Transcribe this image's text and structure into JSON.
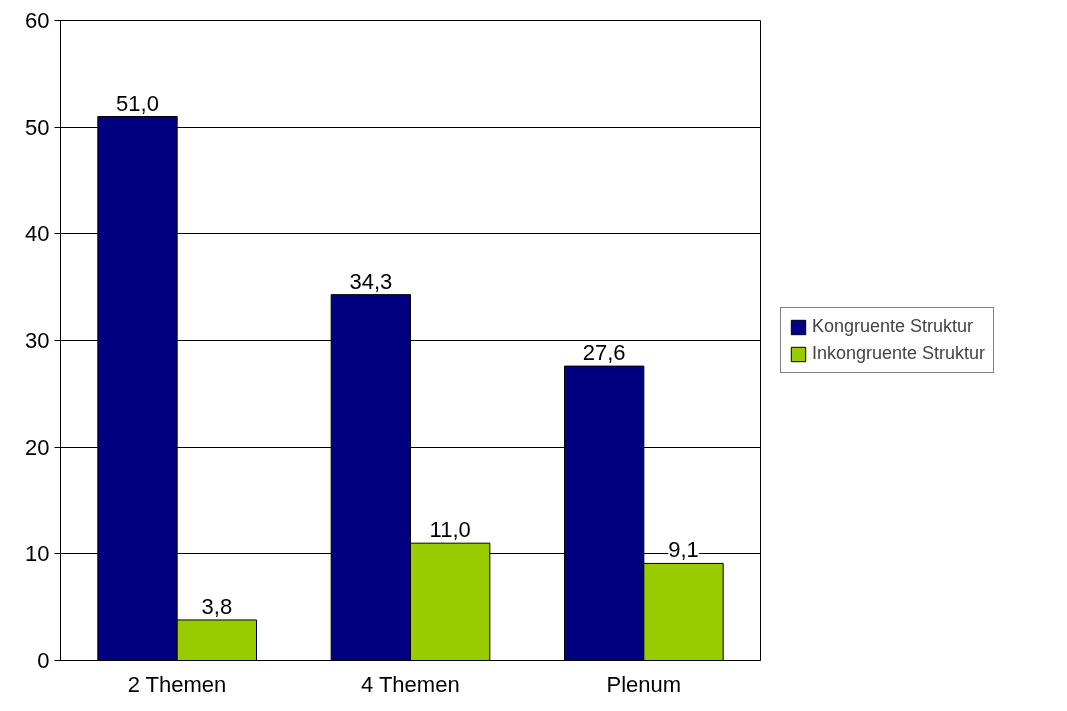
{
  "chart_data": {
    "type": "bar",
    "categories": [
      "2 Themen",
      "4 Themen",
      "Plenum"
    ],
    "series": [
      {
        "name": "Kongruente Struktur",
        "color": "#000080",
        "values": [
          51.0,
          34.3,
          27.6
        ],
        "value_labels": [
          "51,0",
          "34,3",
          "27,6"
        ]
      },
      {
        "name": "Inkongruente Struktur",
        "color": "#99cc00",
        "values": [
          3.8,
          11.0,
          9.1
        ],
        "value_labels": [
          "3,8",
          "11,0",
          "9,1"
        ]
      }
    ],
    "ylim": [
      0,
      60
    ],
    "yticks": [
      0,
      10,
      20,
      30,
      40,
      50,
      60
    ],
    "grid": "y",
    "legend": "right"
  }
}
